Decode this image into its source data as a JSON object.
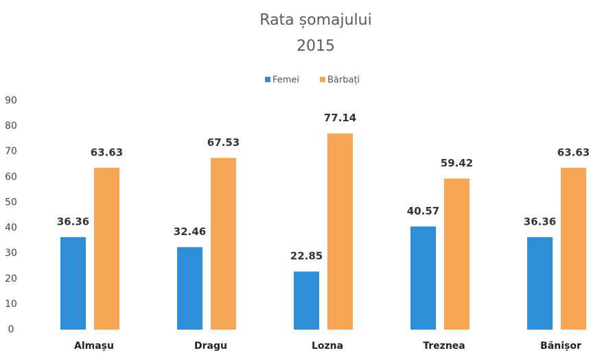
{
  "chart_data": {
    "type": "bar",
    "title": "Rata șomajului",
    "subtitle": "2015",
    "categories": [
      "Almașu",
      "Dragu",
      "Lozna",
      "Treznea",
      "Bănișor"
    ],
    "series": [
      {
        "name": "Femei",
        "color": "#2e8fd8",
        "values": [
          36.36,
          32.46,
          22.85,
          40.57,
          36.36
        ]
      },
      {
        "name": "Bărbați",
        "color": "#f6a654",
        "values": [
          63.63,
          67.53,
          77.14,
          59.42,
          63.63
        ]
      }
    ],
    "ylim": [
      0,
      90
    ],
    "yticks": [
      0,
      10,
      20,
      30,
      40,
      50,
      60,
      70,
      80,
      90
    ],
    "grid": false,
    "legend": "top"
  }
}
